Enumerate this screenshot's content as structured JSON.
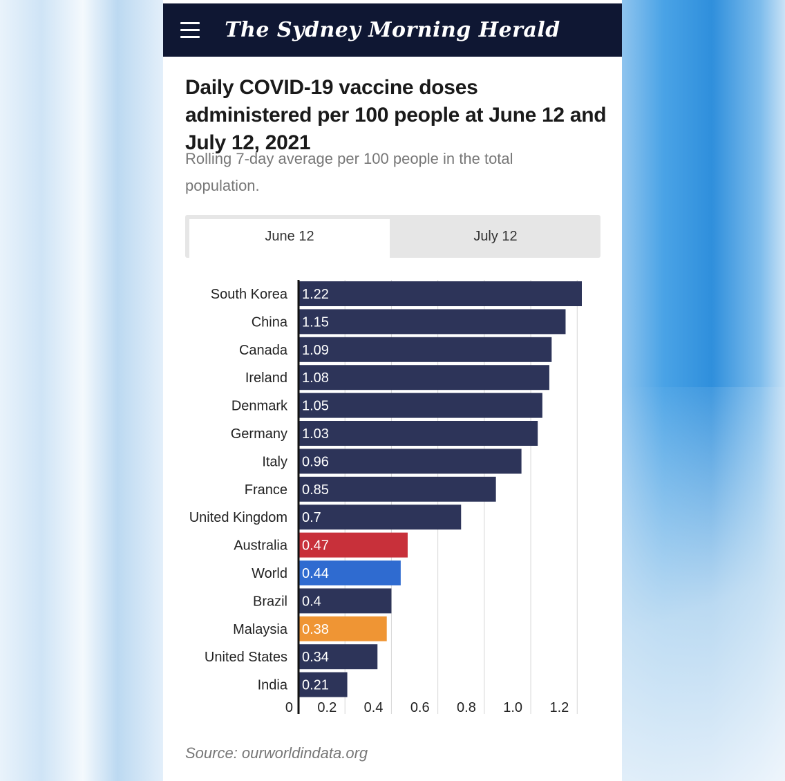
{
  "header": {
    "masthead": "The Sydney Morning Herald",
    "menu_icon": "hamburger-menu-icon"
  },
  "title": "Daily COVID-19 vaccine doses administered per 100 people at June 12 and July 12, 2021",
  "subtitle": "Rolling 7-day average per 100 people in the total population.",
  "tabs": [
    {
      "label": "June 12",
      "active": true
    },
    {
      "label": "July 12",
      "active": false
    }
  ],
  "source": "Source: ourworldindata.org",
  "colors": {
    "default": "#2d3459",
    "australia": "#c8303a",
    "world": "#2f6bd0",
    "malaysia": "#ef9534",
    "header_bg": "#0f1733"
  },
  "chart_data": {
    "type": "bar",
    "orientation": "horizontal",
    "categories": [
      "South Korea",
      "China",
      "Canada",
      "Ireland",
      "Denmark",
      "Germany",
      "Italy",
      "France",
      "United Kingdom",
      "Australia",
      "World",
      "Brazil",
      "Malaysia",
      "United States",
      "India"
    ],
    "values": [
      1.22,
      1.15,
      1.09,
      1.08,
      1.05,
      1.03,
      0.96,
      0.85,
      0.7,
      0.47,
      0.44,
      0.4,
      0.38,
      0.34,
      0.21
    ],
    "value_labels": [
      "1.22",
      "1.15",
      "1.09",
      "1.08",
      "1.05",
      "1.03",
      "0.96",
      "0.85",
      "0.7",
      "0.47",
      "0.44",
      "0.4",
      "0.38",
      "0.34",
      "0.21"
    ],
    "bar_colors": [
      "#2d3459",
      "#2d3459",
      "#2d3459",
      "#2d3459",
      "#2d3459",
      "#2d3459",
      "#2d3459",
      "#2d3459",
      "#2d3459",
      "#c8303a",
      "#2f6bd0",
      "#2d3459",
      "#ef9534",
      "#2d3459",
      "#2d3459"
    ],
    "ticks": [
      0,
      0.2,
      0.4,
      0.6,
      0.8,
      1.0,
      1.2
    ],
    "tick_labels": [
      "0",
      "0.2",
      "0.4",
      "0.6",
      "0.8",
      "1.0",
      "1.2"
    ],
    "xlim": [
      0,
      1.22
    ],
    "grid": true
  }
}
